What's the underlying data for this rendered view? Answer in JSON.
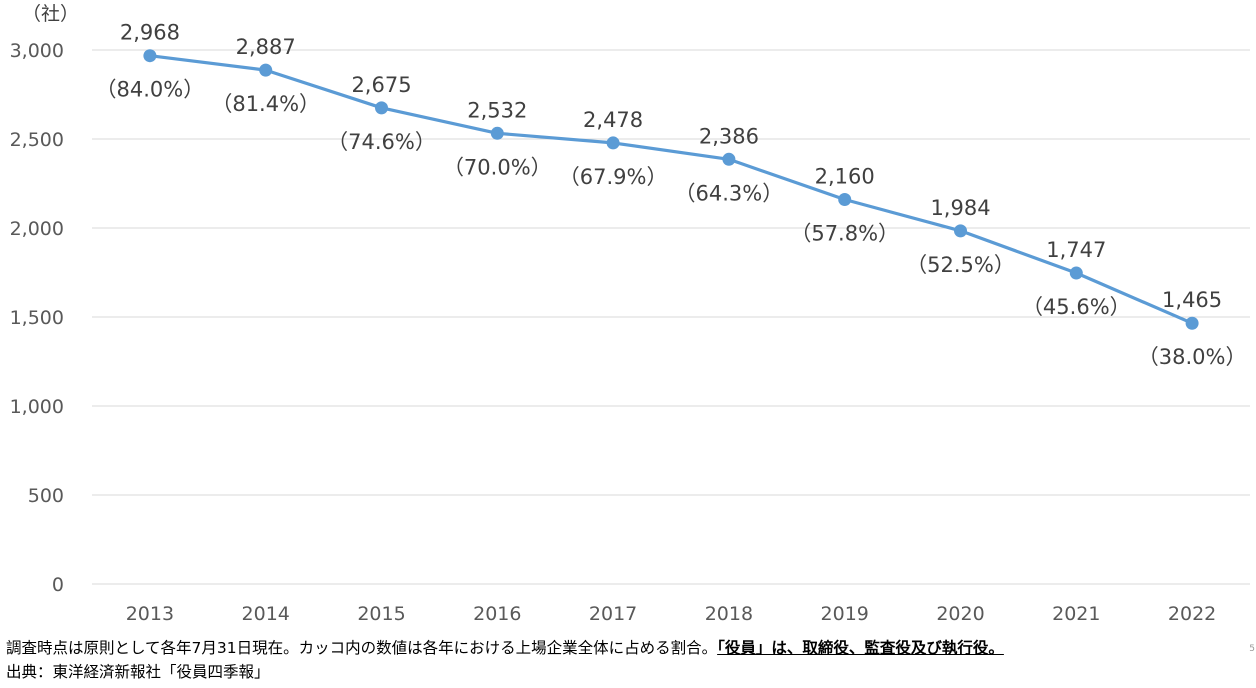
{
  "chart_data": {
    "type": "line",
    "unit_label": "（社）",
    "categories": [
      "2013",
      "2014",
      "2015",
      "2016",
      "2017",
      "2018",
      "2019",
      "2020",
      "2021",
      "2022"
    ],
    "values": [
      2968,
      2887,
      2675,
      2532,
      2478,
      2386,
      2160,
      1984,
      1747,
      1465
    ],
    "value_labels": [
      "2,968",
      "2,887",
      "2,675",
      "2,532",
      "2,478",
      "2,386",
      "2,160",
      "1,984",
      "1,747",
      "1,465"
    ],
    "percent_labels": [
      "（84.0%）",
      "（81.4%）",
      "（74.6%）",
      "（70.0%）",
      "（67.9%）",
      "（64.3%）",
      "（57.8%）",
      "（52.5%）",
      "（45.6%）",
      "（38.0%）"
    ],
    "ylim": [
      0,
      3000
    ],
    "yticks": [
      0,
      500,
      1000,
      1500,
      2000,
      2500,
      3000
    ],
    "ytick_labels": [
      "0",
      "500",
      "1,000",
      "1,500",
      "2,000",
      "2,500",
      "3,000"
    ],
    "grid": true,
    "line_color": "#5b9bd5",
    "grid_color": "#d9d9d9"
  },
  "notes": {
    "line1_plain": "調査時点は原則として各年7月31日現在。カッコ内の数値は各年における上場企業全体に占める割合。",
    "line1_bold": "「役員」は、取締役、監査役及び執行役。",
    "line2": "出典：東洋経済新報社「役員四季報」"
  },
  "page_mark": "5"
}
